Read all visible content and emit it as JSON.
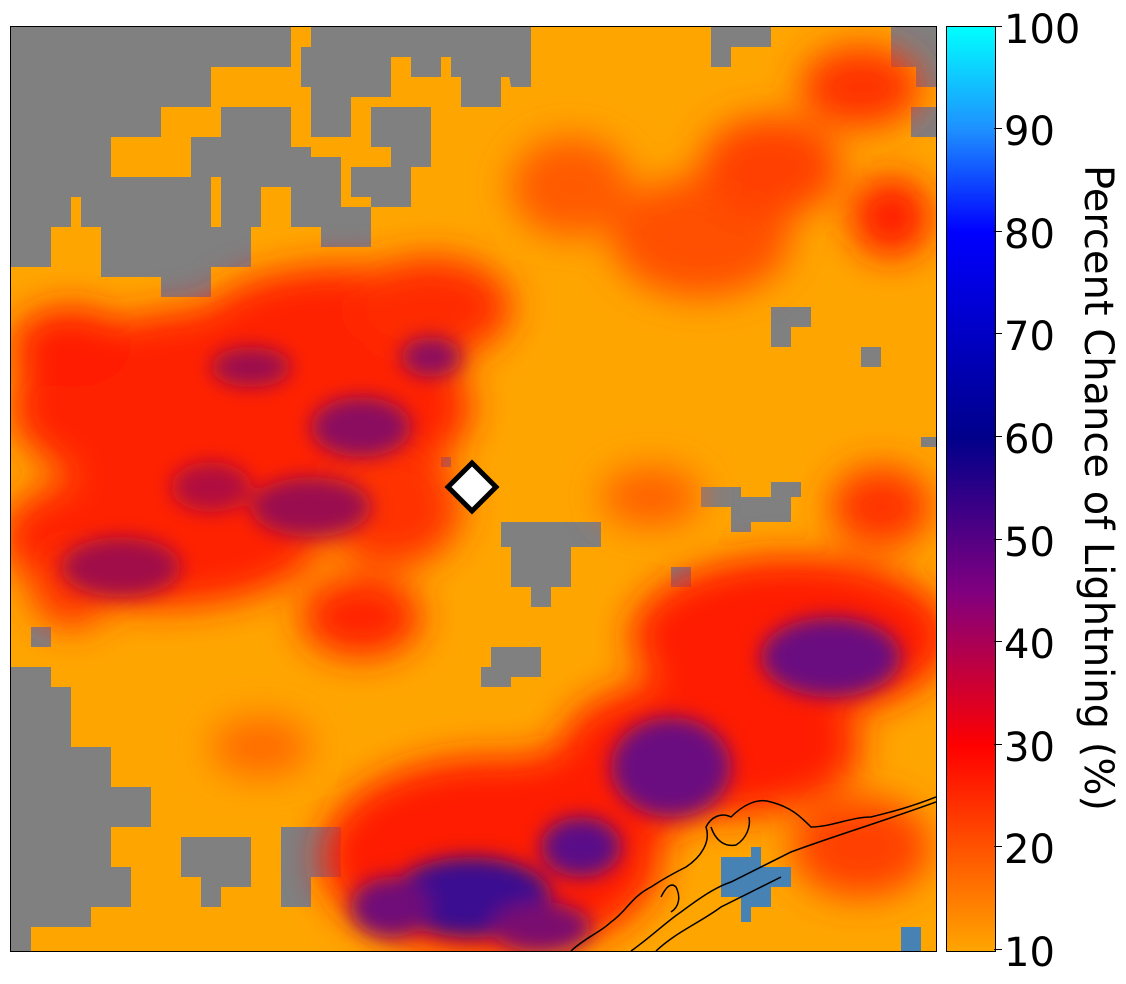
{
  "map": {
    "colors": {
      "no_data": "#808080",
      "water": "#4682b4",
      "marker_fill": "#ffffff",
      "marker_stroke": "#000000"
    }
  },
  "colorbar": {
    "title": "Percent Chance of Lightning (%)",
    "ticks": [
      "10",
      "20",
      "30",
      "40",
      "50",
      "60",
      "70",
      "80",
      "90",
      "100"
    ],
    "range": [
      10,
      100
    ],
    "stops": [
      {
        "value": 10,
        "color": "#ffa500"
      },
      {
        "value": 30,
        "color": "#ff0000"
      },
      {
        "value": 45,
        "color": "#800080"
      },
      {
        "value": 60,
        "color": "#00008b"
      },
      {
        "value": 80,
        "color": "#0000ff"
      },
      {
        "value": 90,
        "color": "#1e90ff"
      },
      {
        "value": 100,
        "color": "#00ffff"
      }
    ]
  }
}
